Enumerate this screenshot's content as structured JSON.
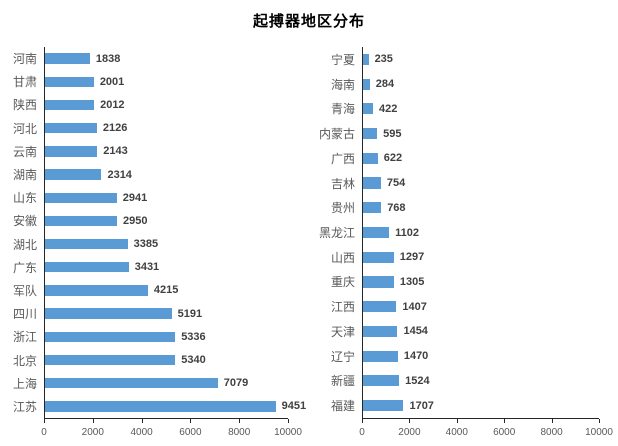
{
  "title": "起搏器地区分布",
  "colors": {
    "bar": "#5b9bd5",
    "axis_line": "#262626",
    "category_label": "#595959",
    "value_label": "#404040",
    "tick_label": "#595959",
    "title_color": "#000000",
    "background": "#ffffff"
  },
  "chart_data": [
    {
      "type": "bar",
      "orientation": "horizontal",
      "panel": "left",
      "title": "起搏器地区分布",
      "categories": [
        "河南",
        "甘肃",
        "陕西",
        "河北",
        "云南",
        "湖南",
        "山东",
        "安徽",
        "湖北",
        "广东",
        "军队",
        "四川",
        "浙江",
        "北京",
        "上海",
        "江苏"
      ],
      "values": [
        1838,
        2001,
        2012,
        2126,
        2143,
        2314,
        2941,
        2950,
        3385,
        3431,
        4215,
        5191,
        5336,
        5340,
        7079,
        9451
      ],
      "xlim": [
        0,
        10000
      ],
      "xticks": [
        0,
        2000,
        4000,
        6000,
        8000,
        10000
      ],
      "xlabel": "",
      "ylabel": "",
      "grid": false,
      "legend": "none",
      "data_labels": true
    },
    {
      "type": "bar",
      "orientation": "horizontal",
      "panel": "right",
      "title": "起搏器地区分布",
      "categories": [
        "宁夏",
        "海南",
        "青海",
        "内蒙古",
        "广西",
        "吉林",
        "贵州",
        "黑龙江",
        "山西",
        "重庆",
        "江西",
        "天津",
        "辽宁",
        "新疆",
        "福建"
      ],
      "values": [
        235,
        284,
        422,
        595,
        622,
        754,
        768,
        1102,
        1297,
        1305,
        1407,
        1454,
        1470,
        1524,
        1707
      ],
      "xlim": [
        0,
        10000
      ],
      "xticks": [
        0,
        2000,
        4000,
        6000,
        8000,
        10000
      ],
      "xlabel": "",
      "ylabel": "",
      "grid": false,
      "legend": "none",
      "data_labels": true
    }
  ]
}
